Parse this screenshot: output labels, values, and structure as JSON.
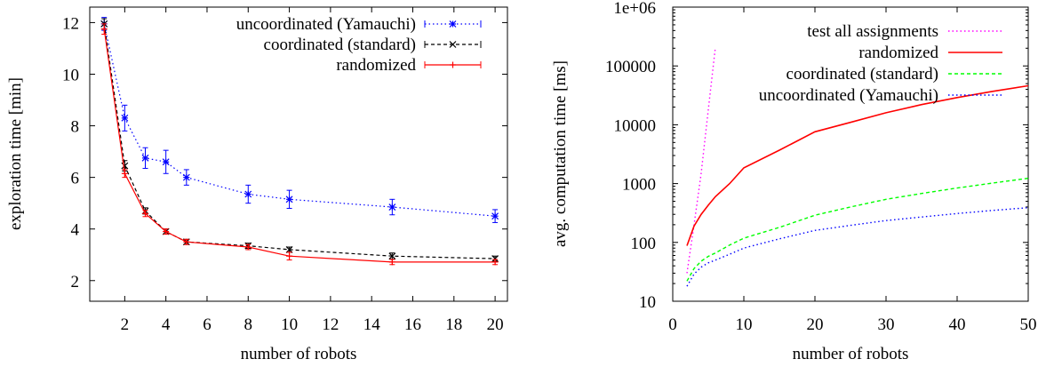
{
  "chart_data": [
    {
      "type": "line",
      "title": "",
      "xlabel": "number of robots",
      "ylabel": "exploration time [min]",
      "xlim": [
        0.3,
        20.6
      ],
      "ylim": [
        1.2,
        12.6
      ],
      "xticks": [
        2,
        4,
        6,
        8,
        10,
        12,
        14,
        16,
        18,
        20
      ],
      "yticks": [
        2,
        4,
        6,
        8,
        10,
        12
      ],
      "grid": false,
      "legend": "top-right",
      "series": [
        {
          "name": "uncoordinated (Yamauchi)",
          "color": "#0000ff",
          "style": "dotted",
          "marker": "asterisk",
          "x": [
            1,
            2,
            3,
            4,
            5,
            8,
            10,
            15,
            20
          ],
          "y": [
            11.95,
            8.3,
            6.75,
            6.6,
            6.0,
            5.35,
            5.15,
            4.85,
            4.5
          ],
          "err": [
            0.25,
            0.5,
            0.4,
            0.45,
            0.3,
            0.35,
            0.35,
            0.3,
            0.25
          ]
        },
        {
          "name": "coordinated (standard)",
          "color": "#000000",
          "style": "dashed",
          "marker": "cross",
          "x": [
            1,
            2,
            3,
            4,
            5,
            8,
            10,
            15,
            20
          ],
          "y": [
            11.95,
            6.45,
            4.7,
            3.9,
            3.5,
            3.35,
            3.2,
            2.95,
            2.85
          ],
          "err": [
            0.2,
            0.2,
            0.12,
            0.1,
            0.1,
            0.1,
            0.1,
            0.12,
            0.1
          ]
        },
        {
          "name": "randomized",
          "color": "#ff0000",
          "style": "solid",
          "marker": "plus",
          "x": [
            1,
            2,
            3,
            4,
            5,
            8,
            10,
            15,
            20
          ],
          "y": [
            11.75,
            6.15,
            4.6,
            3.9,
            3.5,
            3.3,
            2.95,
            2.72,
            2.72
          ],
          "err": [
            0.2,
            0.15,
            0.12,
            0.1,
            0.1,
            0.1,
            0.15,
            0.1,
            0.1
          ]
        }
      ]
    },
    {
      "type": "line",
      "title": "",
      "xlabel": "number of robots",
      "ylabel": "avg. computation time [ms]",
      "xlim": [
        0,
        50
      ],
      "ylim": [
        10,
        1000000
      ],
      "yscale": "log",
      "xticks": [
        0,
        10,
        20,
        30,
        40,
        50
      ],
      "yticks": [
        "10",
        "100",
        "1000",
        "10000",
        "100000",
        "1e+06"
      ],
      "grid": false,
      "legend": "top-right",
      "series": [
        {
          "name": "test all assignments",
          "color": "#ff00ff",
          "style": "dotted",
          "x": [
            2,
            3,
            4,
            5,
            6
          ],
          "y": [
            30,
            200,
            1500,
            18000,
            210000
          ]
        },
        {
          "name": "randomized",
          "color": "#ff0000",
          "style": "solid",
          "x": [
            2,
            3,
            4,
            5,
            6,
            8,
            10,
            15,
            20,
            25,
            30,
            35,
            40,
            45,
            50
          ],
          "y": [
            88,
            190,
            300,
            430,
            600,
            1000,
            1850,
            3700,
            7600,
            11000,
            16000,
            22000,
            29000,
            37000,
            46000
          ]
        },
        {
          "name": "coordinated (standard)",
          "color": "#00ff00",
          "style": "dashed",
          "x": [
            2,
            3,
            4,
            5,
            6,
            8,
            10,
            15,
            20,
            25,
            30,
            35,
            40,
            45,
            50
          ],
          "y": [
            22,
            36,
            48,
            58,
            66,
            90,
            118,
            180,
            290,
            400,
            540,
            680,
            840,
            1020,
            1230
          ]
        },
        {
          "name": "uncoordinated (Yamauchi)",
          "color": "#0000ff",
          "style": "dotted",
          "x": [
            2,
            3,
            4,
            5,
            6,
            8,
            10,
            15,
            20,
            25,
            30,
            35,
            40,
            45,
            50
          ],
          "y": [
            18,
            29,
            38,
            45,
            50,
            63,
            80,
            115,
            160,
            195,
            235,
            270,
            310,
            350,
            390
          ]
        }
      ]
    }
  ]
}
